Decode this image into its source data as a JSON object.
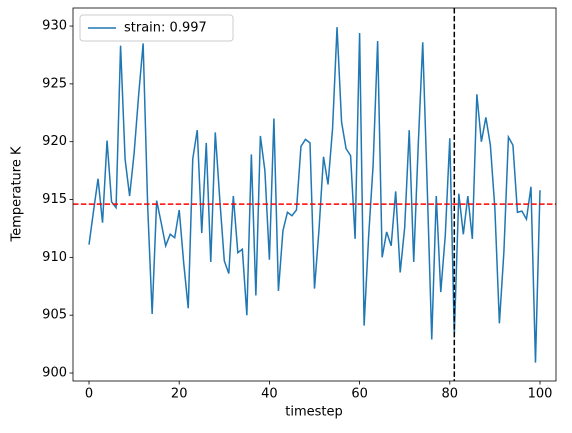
{
  "chart_data": {
    "type": "line",
    "xlabel": "timestep",
    "ylabel": "Temperature K",
    "x": [
      0,
      1,
      2,
      3,
      4,
      5,
      6,
      7,
      8,
      9,
      10,
      11,
      12,
      13,
      14,
      15,
      16,
      17,
      18,
      19,
      20,
      21,
      22,
      23,
      24,
      25,
      26,
      27,
      28,
      29,
      30,
      31,
      32,
      33,
      34,
      35,
      36,
      37,
      38,
      39,
      40,
      41,
      42,
      43,
      44,
      45,
      46,
      47,
      48,
      49,
      50,
      51,
      52,
      53,
      54,
      55,
      56,
      57,
      58,
      59,
      60,
      61,
      62,
      63,
      64,
      65,
      66,
      67,
      68,
      69,
      70,
      71,
      72,
      73,
      74,
      75,
      76,
      77,
      78,
      79,
      80,
      81,
      82,
      83,
      84,
      85,
      86,
      87,
      88,
      89,
      90,
      91,
      92,
      93,
      94,
      95,
      96,
      97,
      98,
      99,
      100
    ],
    "series": [
      {
        "name": "strain: 0.997",
        "color": "#1f77b4",
        "values": [
          911.1,
          914,
          916.8,
          913,
          920.1,
          914.8,
          914.3,
          928.3,
          918.5,
          915.3,
          919,
          924,
          928.5,
          914.5,
          905.1,
          914.9,
          913,
          911,
          912,
          911.7,
          914.1,
          909.5,
          905.6,
          918.5,
          921,
          912.1,
          919.9,
          909.6,
          920.8,
          915,
          909.7,
          908.6,
          915.3,
          910.4,
          910.7,
          905,
          918.9,
          906.7,
          920.5,
          917.5,
          909.8,
          922,
          907.1,
          912.3,
          913.9,
          913.6,
          914.1,
          919.6,
          920.2,
          919.9,
          907.3,
          912.4,
          918.7,
          916.3,
          921.1,
          929.9,
          921.7,
          919.4,
          918.8,
          911.6,
          929.4,
          904.1,
          911.8,
          918,
          928.7,
          910,
          912.2,
          911,
          915.7,
          908.7,
          912.6,
          921,
          909.6,
          919.7,
          928.6,
          916,
          902.9,
          915.3,
          907,
          911.9,
          920.3,
          903.3,
          915.5,
          912,
          915.3,
          911.6,
          924.1,
          920,
          922.1,
          919.7,
          914.2,
          904.3,
          910.5,
          920.4,
          919.7,
          913.9,
          914,
          913.3,
          916.1,
          900.9,
          915.8
        ]
      }
    ],
    "hline": {
      "value": 914.6,
      "color": "#ff0000"
    },
    "vline": {
      "value": 81,
      "color": "#000000"
    },
    "xlim": [
      -3.55,
      103.55
    ],
    "ylim": [
      899.31,
      931.56
    ],
    "xticks": [
      0,
      20,
      40,
      60,
      80,
      100
    ],
    "yticks": [
      900,
      905,
      910,
      915,
      920,
      925,
      930
    ],
    "legend": "upper left"
  }
}
